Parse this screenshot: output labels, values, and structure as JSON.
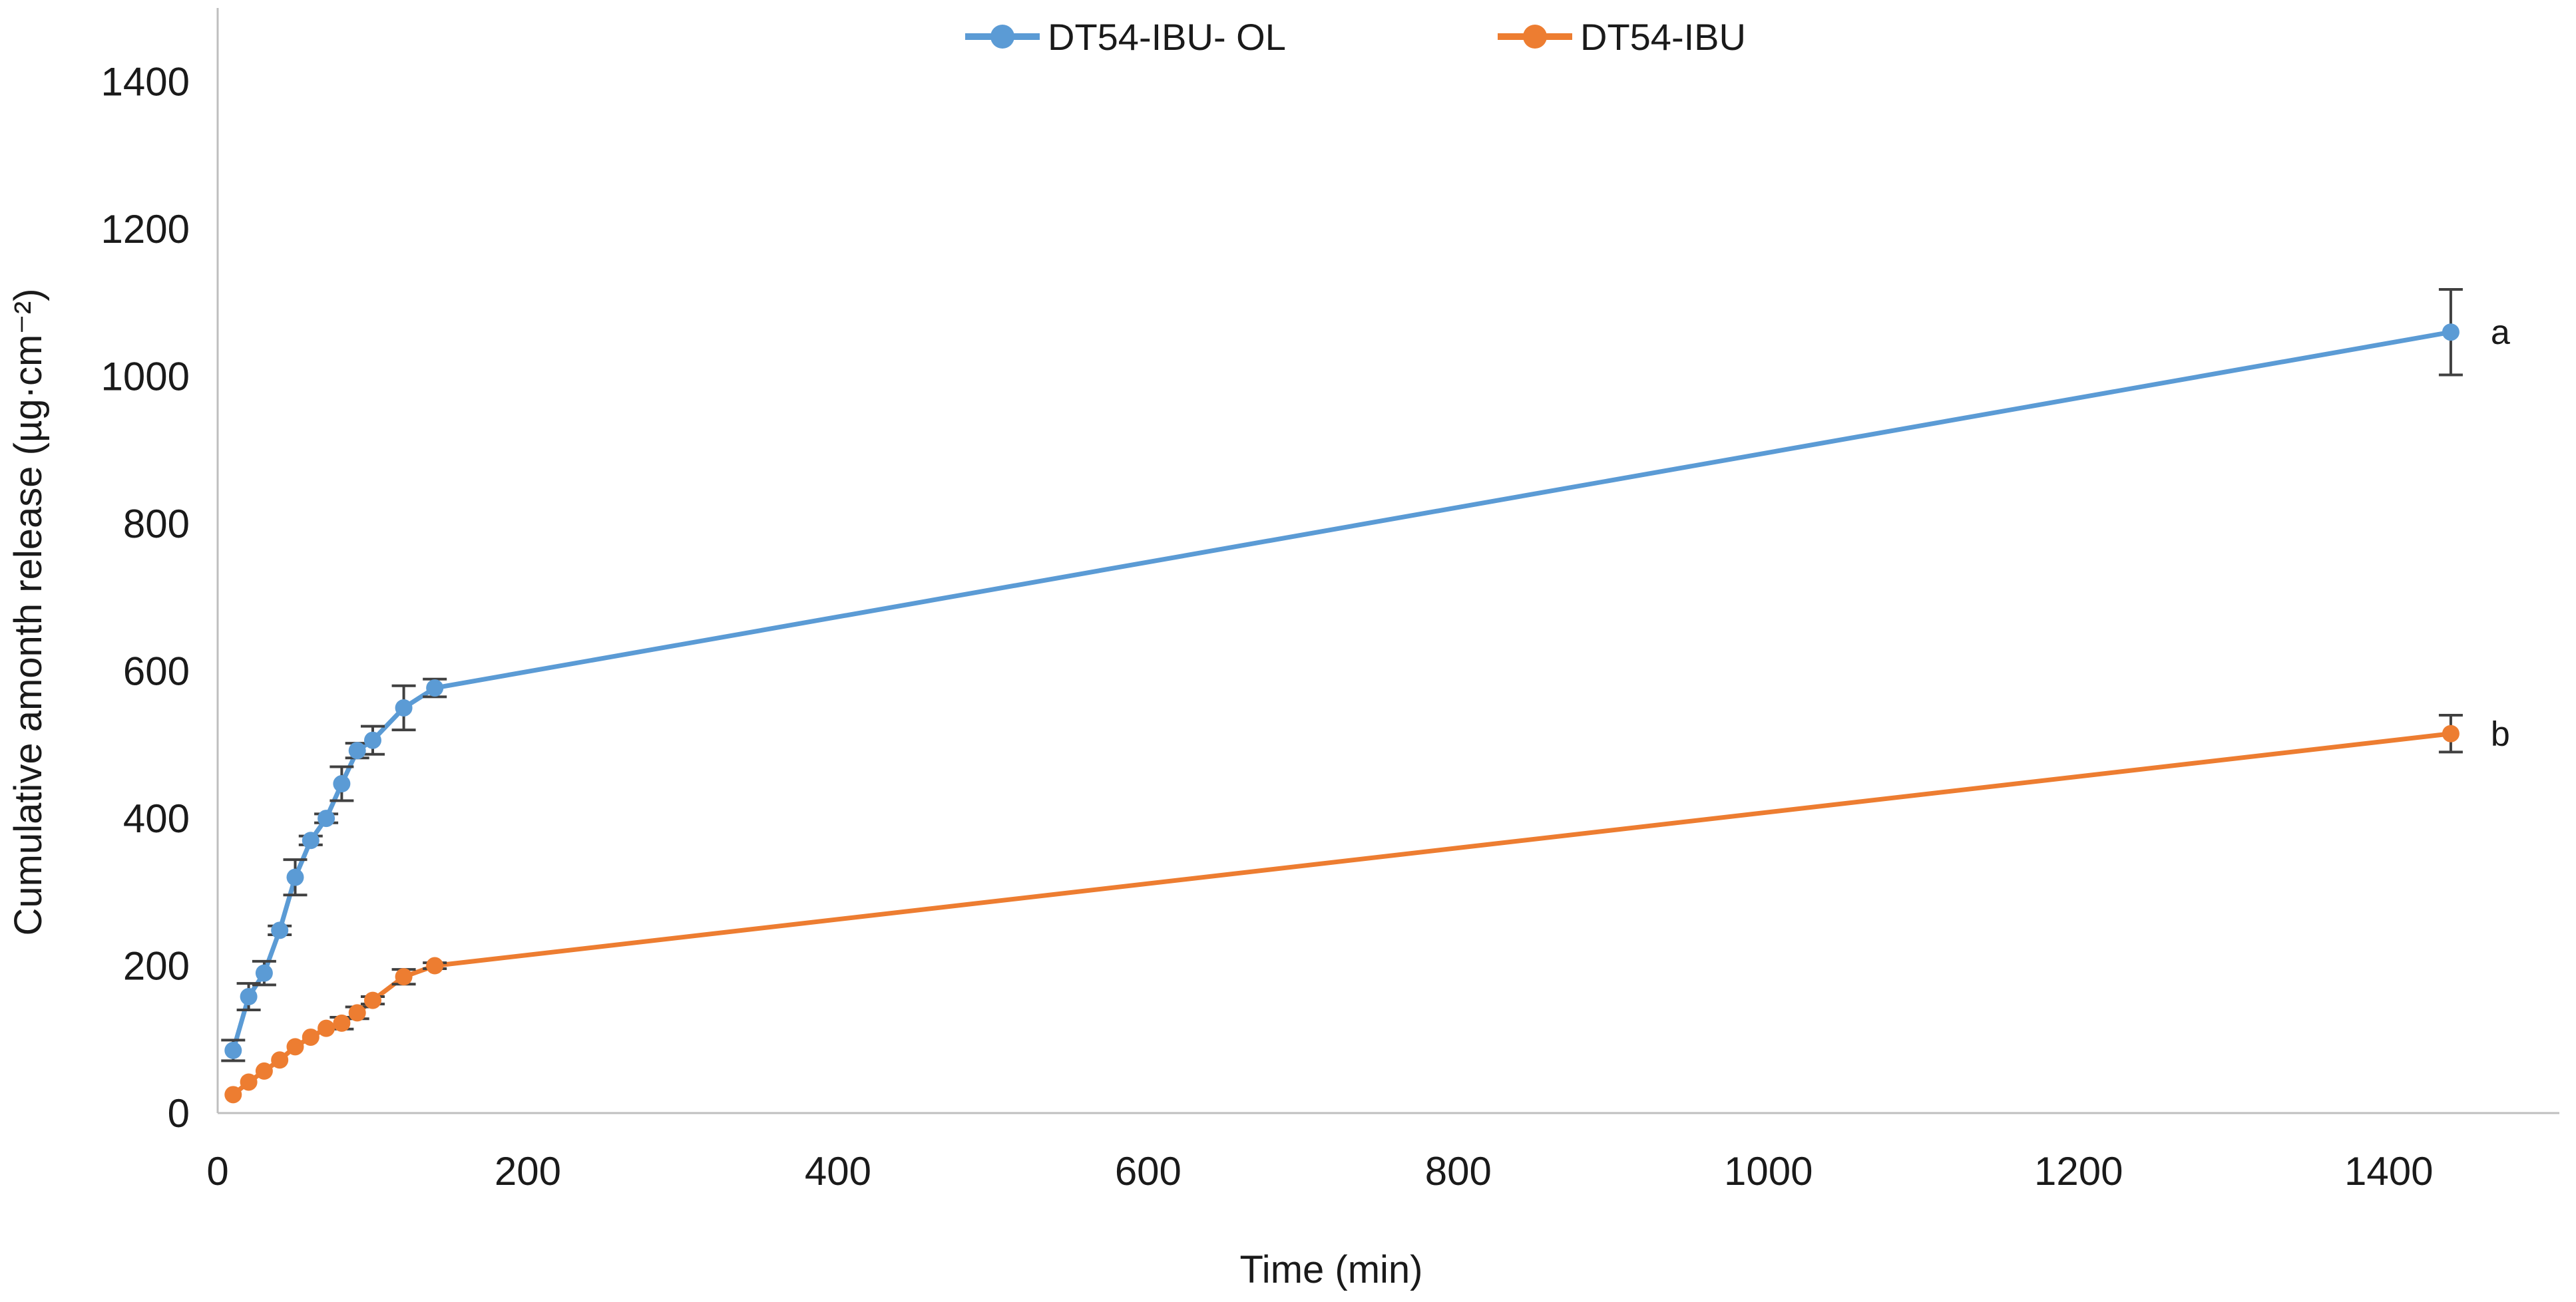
{
  "figure": {
    "background": "#FFFFFF",
    "axis_color": "#BFBFBF",
    "error_bar_color": "#404040",
    "text_color": "#1A1A1A"
  },
  "chart_data": {
    "type": "line",
    "title": "",
    "xlabel": "Time (min)",
    "ylabel": "Cumulative amonth release (µg·cm⁻²)",
    "xlim": [
      0,
      1510
    ],
    "ylim": [
      0,
      1500
    ],
    "x_ticks": [
      0,
      200,
      400,
      600,
      800,
      1000,
      1200,
      1400
    ],
    "y_ticks": [
      0,
      200,
      400,
      600,
      800,
      1000,
      1200,
      1400
    ],
    "grid": false,
    "legend_position": "top-center",
    "x": [
      10,
      20,
      30,
      40,
      50,
      60,
      70,
      80,
      90,
      100,
      120,
      140,
      1440
    ],
    "series": [
      {
        "name": "DT54-IBU- OL",
        "color": "#5B9BD5",
        "marker": "circle",
        "end_label": "a",
        "values": [
          85,
          158,
          190,
          248,
          320,
          370,
          400,
          447,
          492,
          506,
          550,
          577,
          1060
        ],
        "errors": [
          14,
          18,
          16,
          6,
          24,
          6,
          6,
          23,
          10,
          19,
          30,
          12,
          58
        ]
      },
      {
        "name": "DT54-IBU",
        "color": "#ED7D31",
        "marker": "circle",
        "end_label": "b",
        "values": [
          25,
          42,
          57,
          72,
          90,
          103,
          115,
          122,
          136,
          153,
          185,
          200,
          515
        ],
        "errors": [
          0,
          0,
          0,
          0,
          0,
          0,
          0,
          8,
          8,
          5,
          10,
          4,
          25
        ]
      }
    ]
  }
}
